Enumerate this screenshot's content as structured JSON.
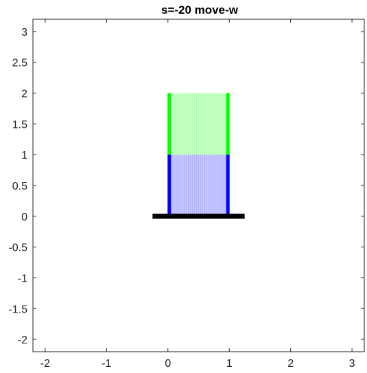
{
  "chart_data": {
    "type": "patch",
    "title": "s=-20 move-w",
    "xlabel": "",
    "ylabel": "",
    "xlim": [
      -2.2,
      3.2
    ],
    "ylim": [
      -2.2,
      3.2
    ],
    "xticks": [
      -2,
      -1,
      0,
      1,
      2,
      3
    ],
    "xtick_labels": [
      "-2",
      "-1",
      "0",
      "1",
      "2",
      "3"
    ],
    "yticks": [
      -2,
      -1.5,
      -1,
      -0.5,
      0,
      0.5,
      1,
      1.5,
      2,
      2.5,
      3
    ],
    "ytick_labels": [
      "-2",
      "-1.5",
      "-1",
      "-0.5",
      "0",
      "0.5",
      "1",
      "1.5",
      "2",
      "2.5",
      "3"
    ],
    "grid": false,
    "shapes": [
      {
        "kind": "rect",
        "x": [
          -0.25,
          1.25
        ],
        "y": [
          -0.04,
          0.04
        ],
        "color": "#000000",
        "opacity": 1
      },
      {
        "kind": "rect",
        "x": [
          0,
          1
        ],
        "y": [
          0,
          1
        ],
        "color": "#0000ff",
        "opacity": 0.22,
        "edge_color": "#0000ff"
      },
      {
        "kind": "rect",
        "x": [
          0,
          1
        ],
        "y": [
          1,
          2
        ],
        "color": "#00ff00",
        "opacity": 0.22,
        "edge_color": "#00ff00"
      }
    ],
    "colors": {
      "base": "#000000",
      "lower_block": "#0000ff",
      "upper_block": "#00ff00",
      "axis": "#222222"
    }
  }
}
